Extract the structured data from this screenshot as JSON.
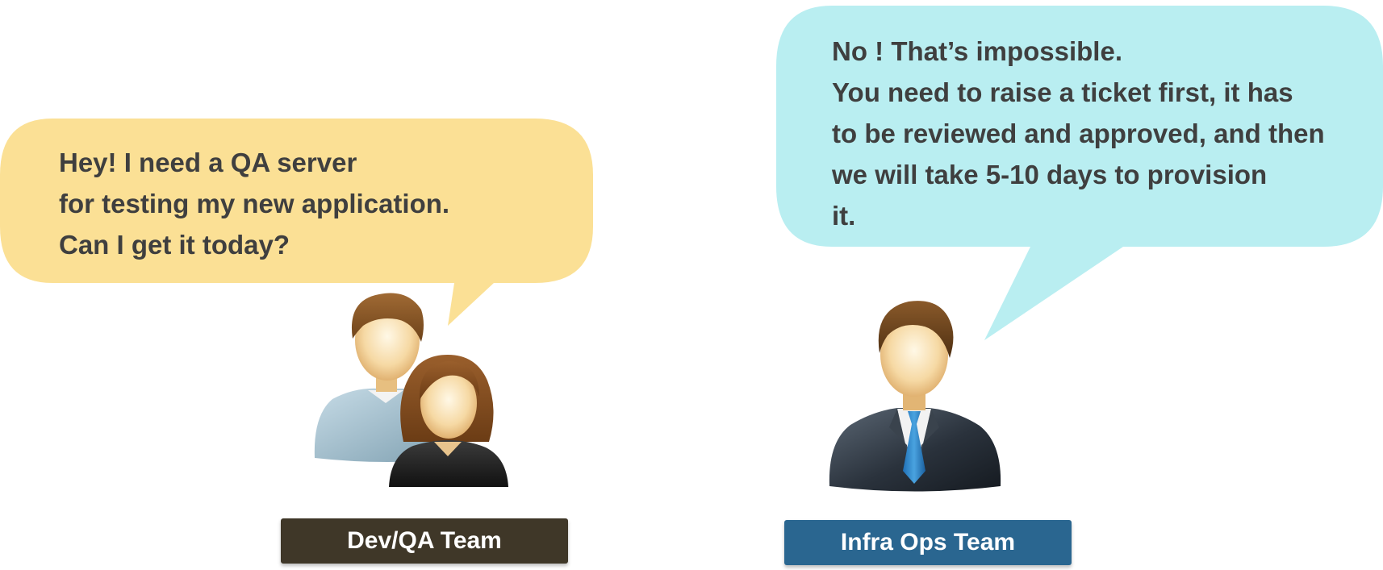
{
  "dev_bubble": {
    "lines": [
      "Hey! I need a QA server",
      "for testing my new application.",
      "Can I get it today?"
    ],
    "color": "#fbe095"
  },
  "ops_bubble": {
    "lines": [
      "No ! That’s impossible.",
      "You need to raise a ticket first, it has",
      "to be reviewed and approved, and then",
      "we will take 5-10 days to provision",
      "it."
    ],
    "color": "#b9eef1"
  },
  "dev_team": {
    "label": "Dev/QA Team",
    "color": "#3f3728",
    "icon": "man-and-woman-icon"
  },
  "ops_team": {
    "label": "Infra Ops Team",
    "color": "#2a6690",
    "icon": "businessman-icon"
  }
}
